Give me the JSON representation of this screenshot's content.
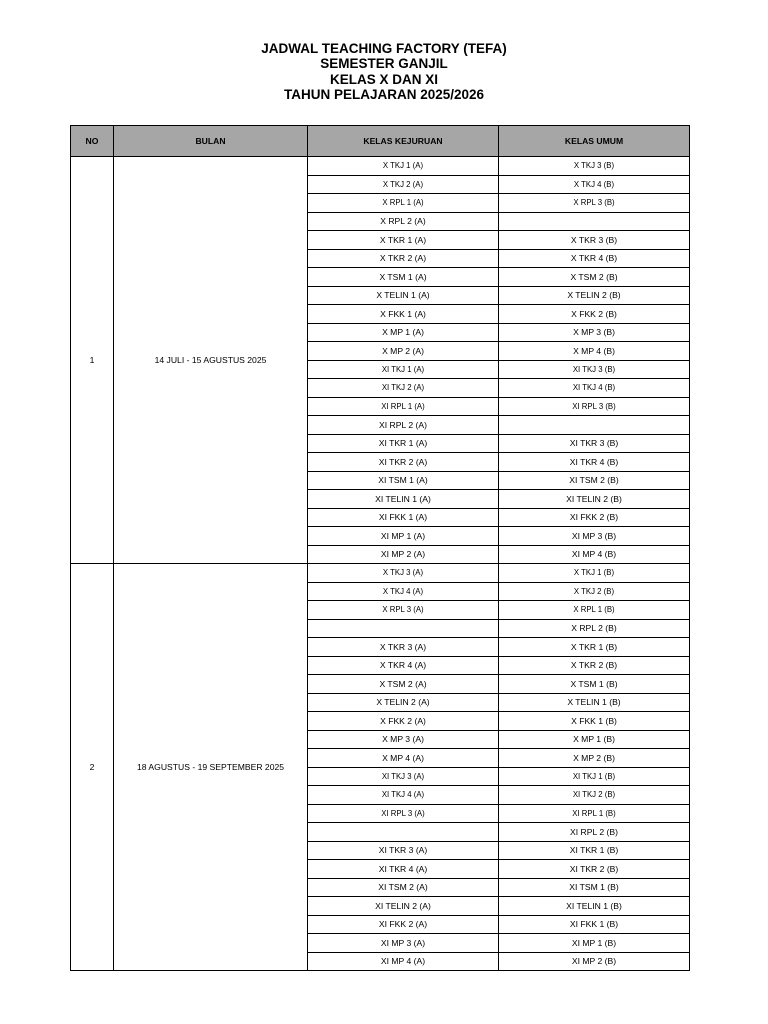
{
  "title": [
    "JADWAL TEACHING FACTORY (TEFA)",
    "SEMESTER GANJIL",
    "KELAS X DAN XI",
    "TAHUN PELAJARAN 2025/2026"
  ],
  "headers": {
    "no": "NO",
    "bulan": "BULAN",
    "kejuruan": "KELAS KEJURUAN",
    "umum": "KELAS UMUM"
  },
  "groups": [
    {
      "no": "1",
      "bulan": "14 JULI - 15 AGUSTUS 2025",
      "rows": [
        [
          "X TKJ 1 (A)",
          "X TKJ 3 (B)"
        ],
        [
          "X TKJ 2 (A)",
          "X TKJ 4 (B)"
        ],
        [
          "X RPL 1 (A)",
          "X RPL 3 (B)"
        ],
        [
          "X RPL 2 (A)",
          ""
        ],
        [
          "X TKR 1 (A)",
          "X TKR 3 (B)"
        ],
        [
          "X TKR 2 (A)",
          "X TKR 4 (B)"
        ],
        [
          "X TSM 1 (A)",
          "X TSM 2 (B)"
        ],
        [
          "X TELIN 1 (A)",
          "X TELIN 2 (B)"
        ],
        [
          "X FKK 1 (A)",
          "X FKK 2 (B)"
        ],
        [
          "X MP 1 (A)",
          "X MP 3 (B)"
        ],
        [
          "X MP 2 (A)",
          "X MP 4 (B)"
        ],
        [
          "XI TKJ 1 (A)",
          "XI TKJ 3 (B)"
        ],
        [
          "XI TKJ 2 (A)",
          "XI TKJ 4 (B)"
        ],
        [
          "XI RPL 1 (A)",
          "XI RPL 3 (B)"
        ],
        [
          "XI RPL 2 (A)",
          ""
        ],
        [
          "XI TKR 1 (A)",
          "XI TKR 3 (B)"
        ],
        [
          "XI TKR 2 (A)",
          "XI TKR 4 (B)"
        ],
        [
          "XI TSM 1 (A)",
          "XI TSM 2 (B)"
        ],
        [
          "XI TELIN 1 (A)",
          "XI TELIN 2 (B)"
        ],
        [
          "XI FKK 1 (A)",
          "XI FKK 2 (B)"
        ],
        [
          "XI MP 1 (A)",
          "XI MP 3 (B)"
        ],
        [
          "XI MP 2 (A)",
          "XI MP 4 (B)"
        ]
      ]
    },
    {
      "no": "2",
      "bulan": "18 AGUSTUS - 19 SEPTEMBER 2025",
      "rows": [
        [
          "X TKJ 3 (A)",
          "X TKJ 1 (B)"
        ],
        [
          "X TKJ 4 (A)",
          "X TKJ 2 (B)"
        ],
        [
          "X RPL 3 (A)",
          "X RPL 1 (B)"
        ],
        [
          "",
          "X RPL 2 (B)"
        ],
        [
          "X TKR 3 (A)",
          "X TKR 1 (B)"
        ],
        [
          "X TKR 4 (A)",
          "X TKR 2 (B)"
        ],
        [
          "X TSM 2 (A)",
          "X TSM 1 (B)"
        ],
        [
          "X TELIN 2 (A)",
          "X TELIN 1 (B)"
        ],
        [
          "X FKK 2 (A)",
          "X FKK 1 (B)"
        ],
        [
          "X MP 3 (A)",
          "X MP 1 (B)"
        ],
        [
          "X MP 4 (A)",
          "X MP 2 (B)"
        ],
        [
          "XI TKJ 3 (A)",
          "XI TKJ 1 (B)"
        ],
        [
          "XI TKJ 4 (A)",
          "XI TKJ 2 (B)"
        ],
        [
          "XI RPL 3 (A)",
          "XI RPL 1 (B)"
        ],
        [
          "",
          "XI RPL 2 (B)"
        ],
        [
          "XI TKR 3 (A)",
          "XI TKR 1 (B)"
        ],
        [
          "XI TKR 4 (A)",
          "XI TKR 2 (B)"
        ],
        [
          "XI TSM 2 (A)",
          "XI TSM 1 (B)"
        ],
        [
          "XI TELIN 2 (A)",
          "XI TELIN 1 (B)"
        ],
        [
          "XI FKK 2 (A)",
          "XI FKK 1 (B)"
        ],
        [
          "XI MP 3 (A)",
          "XI MP 1 (B)"
        ],
        [
          "XI MP 4 (A)",
          "XI MP 2 (B)"
        ]
      ]
    }
  ]
}
